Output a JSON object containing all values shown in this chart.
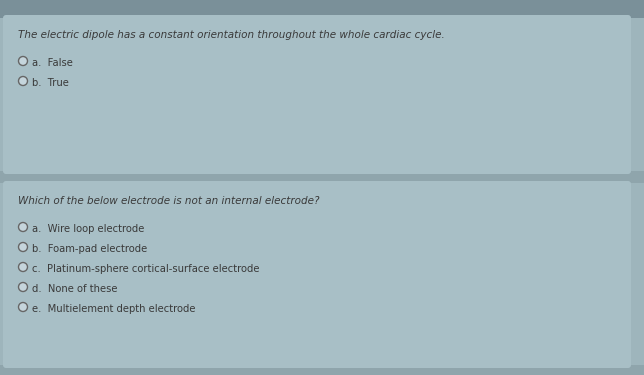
{
  "bg_color": "#9eb5bc",
  "top_strip_color": "#7a9099",
  "card1_color": "#a8bfc6",
  "card2_color": "#a8bfc6",
  "bottom_strip_color": "#8fa5ac",
  "question1": "The electric dipole has a constant orientation throughout the whole cardiac cycle.",
  "q1_options": [
    {
      "label": "a.",
      "text": "False"
    },
    {
      "label": "b.",
      "text": "True"
    }
  ],
  "question2": "Which of the below electrode is not an internal electrode?",
  "q2_options": [
    {
      "label": "a.",
      "text": "Wire loop electrode"
    },
    {
      "label": "b.",
      "text": "Foam-pad electrode"
    },
    {
      "label": "c.",
      "text": "Platinum-sphere cortical-surface electrode"
    },
    {
      "label": "d.",
      "text": "None of these"
    },
    {
      "label": "e.",
      "text": "Multielement depth electrode"
    }
  ],
  "text_color": "#3a3a3a",
  "circle_edge_color": "#666666",
  "circle_face_color": "#c5d5dc",
  "font_size_question": 7.5,
  "font_size_option": 7.2,
  "fig_width": 6.44,
  "fig_height": 3.75,
  "dpi": 100
}
